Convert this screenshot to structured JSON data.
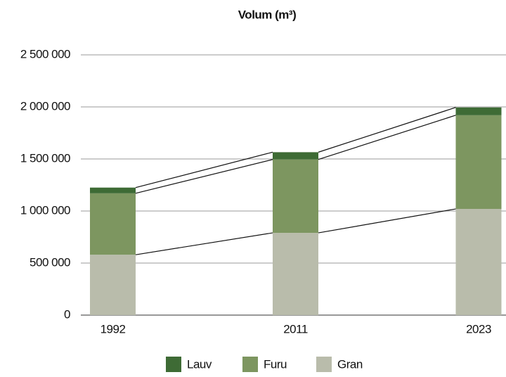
{
  "chart_data": {
    "type": "stacked_bar",
    "title": "Volum (m³)",
    "categories": [
      "1992",
      "2011",
      "2023"
    ],
    "series": [
      {
        "name": "Lauv",
        "color": "#3e6b35",
        "values": [
          55000,
          70000,
          75000
        ]
      },
      {
        "name": "Furu",
        "color": "#7d9660",
        "values": [
          590000,
          705000,
          900000
        ]
      },
      {
        "name": "Gran",
        "color": "#b9bcab",
        "values": [
          580000,
          790000,
          1020000
        ]
      }
    ],
    "ylim": [
      0,
      2500000
    ],
    "yticks": [
      0,
      {
        "value": 500000,
        "label": "500 000"
      },
      {
        "value": 1000000,
        "label": "1 000 000"
      },
      {
        "value": 1500000,
        "label": "1 500 000"
      },
      {
        "value": 2000000,
        "label": "2 000 000"
      },
      {
        "value": 2500000,
        "label": "2 500 000"
      }
    ],
    "grid": true,
    "legend": "bottom"
  }
}
